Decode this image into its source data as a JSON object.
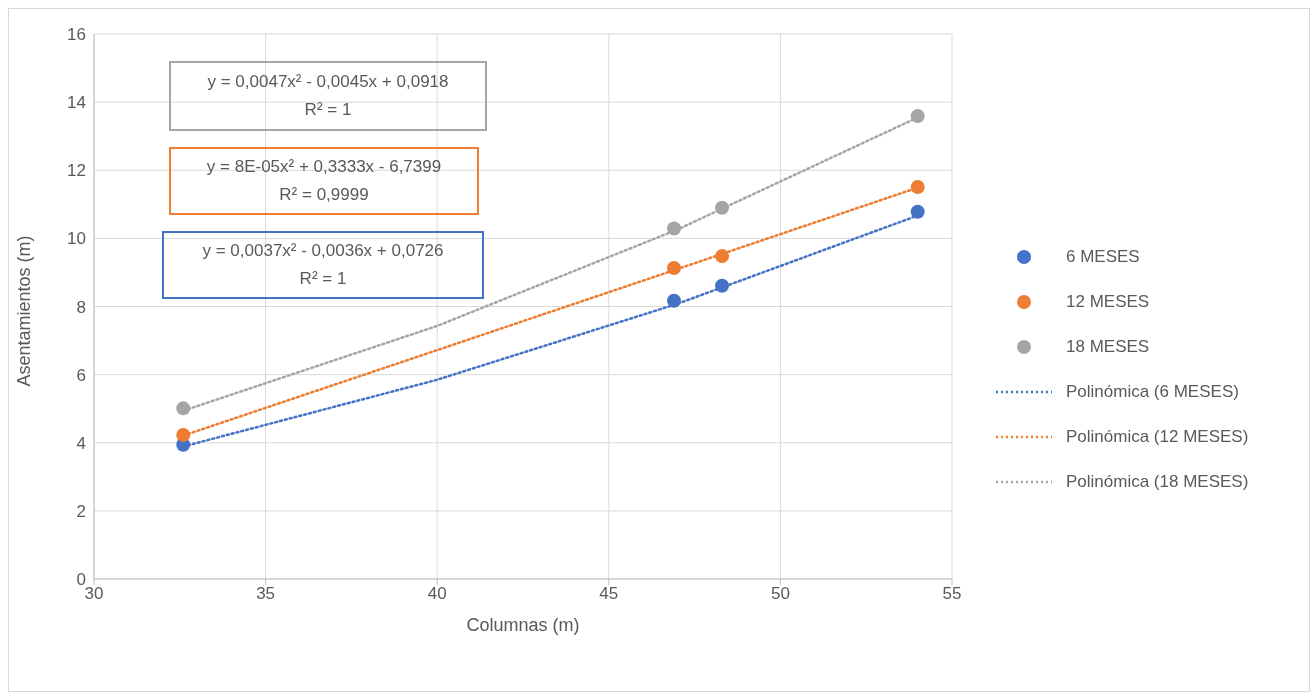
{
  "chart_data": {
    "type": "scatter",
    "xlabel": "Columnas (m)",
    "ylabel": "Asentamientos (m)",
    "xlim": [
      30,
      55
    ],
    "xticks": [
      30,
      35,
      40,
      45,
      50,
      55
    ],
    "ylim": [
      0,
      16
    ],
    "yticks": [
      0,
      2,
      4,
      6,
      8,
      10,
      12,
      14,
      16
    ],
    "grid": true,
    "legend": "right",
    "series": [
      {
        "name": "6 MESES",
        "marker": "circle",
        "color": "#4472c4",
        "x": [
          32.6,
          46.9,
          48.3,
          54
        ],
        "values": [
          3.94,
          8.17,
          8.61,
          10.78
        ]
      },
      {
        "name": "12 MESES",
        "marker": "circle",
        "color": "#ed7d31",
        "x": [
          32.6,
          46.9,
          48.3,
          54
        ],
        "values": [
          4.23,
          9.13,
          9.48,
          11.51
        ]
      },
      {
        "name": "18 MESES",
        "marker": "circle",
        "color": "#a5a5a5",
        "x": [
          32.6,
          46.9,
          48.3,
          54
        ],
        "values": [
          5.01,
          10.29,
          10.9,
          13.59
        ]
      },
      {
        "name": "Polinómica (6 MESES)",
        "type": "line",
        "marker": "none",
        "line_style": "dotted",
        "color": "#4472c4",
        "x": [
          32.6,
          40,
          47,
          54
        ],
        "values": [
          3.89,
          5.85,
          8.08,
          10.67
        ]
      },
      {
        "name": "Polinómica (12 MESES)",
        "type": "line",
        "marker": "none",
        "line_style": "dotted",
        "color": "#ed7d31",
        "x": [
          32.6,
          40,
          47,
          54
        ],
        "values": [
          4.21,
          6.72,
          9.1,
          11.49
        ]
      },
      {
        "name": "Polinómica (18 MESES)",
        "type": "line",
        "marker": "none",
        "line_style": "dotted",
        "color": "#a5a5a5",
        "x": [
          32.6,
          40,
          47,
          54
        ],
        "values": [
          4.94,
          7.43,
          10.26,
          13.55
        ]
      }
    ],
    "annotations": [
      "y = 0,0047x² - 0,0045x + 0,0918\nR² = 1",
      "y = 8E-05x² + 0,3333x - 6,7399\nR² = 0,9999",
      "y = 0,0037x² - 0,0036x + 0,0726\nR² = 1"
    ]
  }
}
